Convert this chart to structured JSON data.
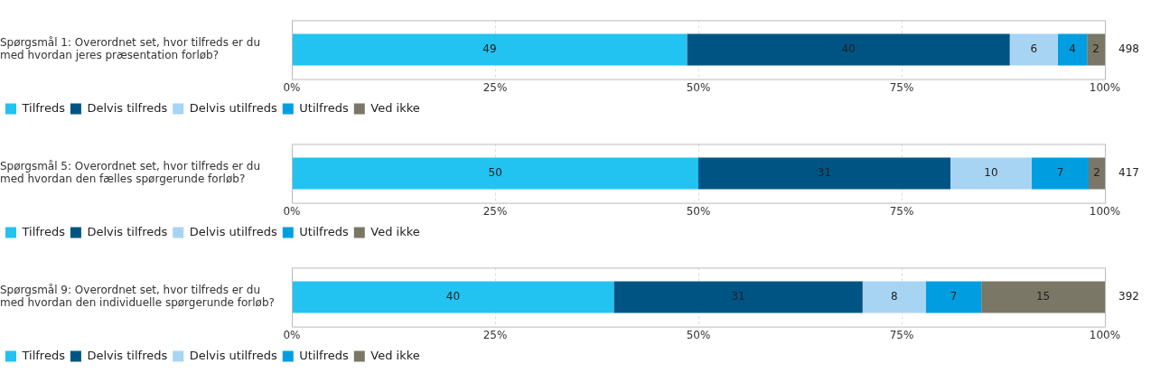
{
  "chart_data": [
    {
      "type": "bar",
      "orientation": "horizontal",
      "stacked": true,
      "categories": [
        "Spørgsmål 1: Overordnet set, hvor tilfreds er du med hvordan jeres præsentation forløb?"
      ],
      "series": [
        {
          "name": "Tilfreds",
          "color": "#22c3f0",
          "values": [
            48.6
          ],
          "value_labels": [
            "49"
          ]
        },
        {
          "name": "Delvis tilfreds",
          "color": "#005483",
          "values": [
            39.7
          ],
          "value_labels": [
            "40"
          ]
        },
        {
          "name": "Delvis utilfreds",
          "color": "#a8d4f3",
          "values": [
            5.9
          ],
          "value_labels": [
            "6"
          ]
        },
        {
          "name": "Utilfreds",
          "color": "#009ee0",
          "values": [
            3.6
          ],
          "value_labels": [
            "4"
          ]
        },
        {
          "name": "Ved ikke",
          "color": "#7a7766",
          "values": [
            2.2
          ],
          "value_labels": [
            "2"
          ]
        }
      ],
      "xlim": [
        0,
        100
      ],
      "xticks": [
        {
          "value": 0,
          "label": "0%"
        },
        {
          "value": 25,
          "label": "25%"
        },
        {
          "value": 50,
          "label": "50%"
        },
        {
          "value": 75,
          "label": "75%"
        },
        {
          "value": 100,
          "label": "100%"
        }
      ],
      "grid": "x",
      "legend": "bottom",
      "annotations": [
        "498"
      ]
    },
    {
      "type": "bar",
      "orientation": "horizontal",
      "stacked": true,
      "categories": [
        "Spørgsmål 5: Overordnet set, hvor tilfreds er du med hvordan den fælles spørgerunde forløb?"
      ],
      "series": [
        {
          "name": "Tilfreds",
          "color": "#22c3f0",
          "values": [
            50
          ]
        },
        {
          "name": "Delvis tilfreds",
          "color": "#005483",
          "values": [
            31
          ]
        },
        {
          "name": "Delvis utilfreds",
          "color": "#a8d4f3",
          "values": [
            10
          ]
        },
        {
          "name": "Utilfreds",
          "color": "#009ee0",
          "values": [
            7
          ]
        },
        {
          "name": "Ved ikke",
          "color": "#7a7766",
          "values": [
            2
          ]
        }
      ],
      "xlim": [
        0,
        100
      ],
      "xticks": [
        {
          "value": 0,
          "label": "0%"
        },
        {
          "value": 25,
          "label": "25%"
        },
        {
          "value": 50,
          "label": "50%"
        },
        {
          "value": 75,
          "label": "75%"
        },
        {
          "value": 100,
          "label": "100%"
        }
      ],
      "grid": "x",
      "legend": "bottom",
      "data_labels": true,
      "annotations": [
        "417"
      ]
    },
    {
      "type": "bar",
      "orientation": "horizontal",
      "stacked": true,
      "categories": [
        "Spørgsmål 9: Overordnet set, hvor tilfreds er du med hvordan den individuelle spørgerunde forløb?"
      ],
      "series": [
        {
          "name": "Tilfreds",
          "color": "#22c3f0",
          "values": [
            39.6
          ],
          "value_labels": [
            "40"
          ]
        },
        {
          "name": "Delvis tilfreds",
          "color": "#005483",
          "values": [
            30.6
          ],
          "value_labels": [
            "31"
          ]
        },
        {
          "name": "Delvis utilfreds",
          "color": "#a8d4f3",
          "values": [
            7.8
          ],
          "value_labels": [
            "8"
          ]
        },
        {
          "name": "Utilfreds",
          "color": "#009ee0",
          "values": [
            6.8
          ],
          "value_labels": [
            "7"
          ]
        },
        {
          "name": "Ved ikke",
          "color": "#7a7766",
          "values": [
            15.2
          ],
          "value_labels": [
            "15"
          ]
        }
      ],
      "xlim": [
        0,
        100
      ],
      "xticks": [
        {
          "value": 0,
          "label": "0%"
        },
        {
          "value": 25,
          "label": "25%"
        },
        {
          "value": 50,
          "label": "50%"
        },
        {
          "value": 75,
          "label": "75%"
        },
        {
          "value": 100,
          "label": "100%"
        }
      ],
      "grid": "x",
      "legend": "bottom",
      "annotations": [
        "392"
      ]
    }
  ]
}
